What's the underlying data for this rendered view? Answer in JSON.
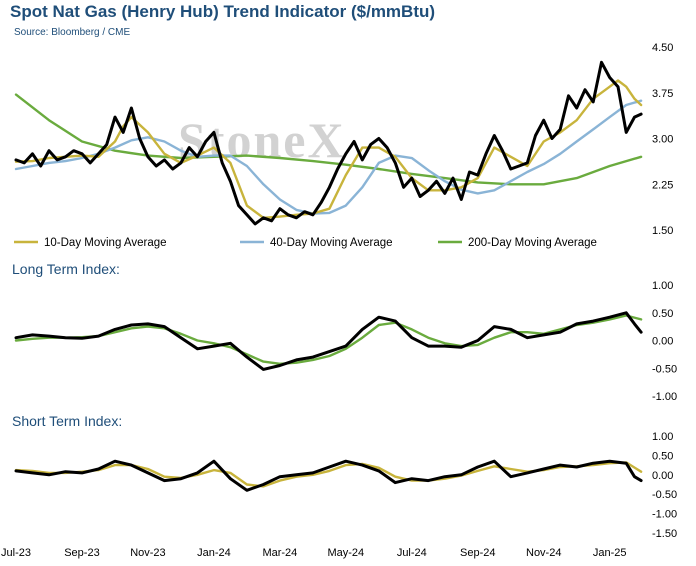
{
  "header": {
    "title": "Spot Nat Gas (Henry Hub) Trend Indicator ($/mmBtu)",
    "source": "Source: Bloomberg / CME"
  },
  "watermark": "StoneX",
  "colors": {
    "price": "#000000",
    "ma10": "#c8b43c",
    "ma40": "#8ab4d6",
    "ma200": "#6aab3e",
    "title": "#1f4e79"
  },
  "chart_data": [
    {
      "type": "line",
      "panel": "price",
      "title": "Spot Nat Gas (Henry Hub) Trend Indicator ($/mmBtu)",
      "ylim": [
        1.5,
        4.5
      ],
      "yticks": [
        "1.50",
        "2.25",
        "3.00",
        "3.75",
        "4.50"
      ],
      "ytick_values": [
        1.5,
        2.25,
        3.0,
        3.75,
        4.5
      ],
      "xticks": [
        "Jul-23",
        "Sep-23",
        "Nov-23",
        "Jan-24",
        "Mar-24",
        "May-24",
        "Jul-24",
        "Sep-24",
        "Nov-24",
        "Jan-25"
      ],
      "x_months": [
        0,
        2,
        4,
        6,
        8,
        10,
        12,
        14,
        16,
        18
      ],
      "x_range": [
        0,
        19.1
      ],
      "grid": false,
      "legend_position": "bottom",
      "series": [
        {
          "name": "",
          "key": "price",
          "x": [
            0,
            0.25,
            0.5,
            0.75,
            1,
            1.25,
            1.5,
            1.75,
            2,
            2.25,
            2.5,
            2.75,
            3,
            3.25,
            3.5,
            3.75,
            4,
            4.25,
            4.5,
            4.75,
            5,
            5.25,
            5.5,
            5.75,
            6,
            6.25,
            6.5,
            6.75,
            7,
            7.25,
            7.5,
            7.75,
            8,
            8.25,
            8.5,
            8.75,
            9,
            9.25,
            9.5,
            9.75,
            10,
            10.25,
            10.5,
            10.75,
            11,
            11.25,
            11.5,
            11.75,
            12,
            12.25,
            12.5,
            12.75,
            13,
            13.25,
            13.5,
            13.75,
            14,
            14.25,
            14.5,
            14.75,
            15,
            15.25,
            15.5,
            15.75,
            16,
            16.25,
            16.5,
            16.75,
            17,
            17.25,
            17.5,
            17.75,
            18,
            18.25,
            18.5,
            18.75,
            18.95
          ],
          "y": [
            2.65,
            2.6,
            2.75,
            2.55,
            2.8,
            2.65,
            2.7,
            2.8,
            2.75,
            2.6,
            2.75,
            2.9,
            3.35,
            3.1,
            3.5,
            3.0,
            2.7,
            2.55,
            2.65,
            2.5,
            2.6,
            2.85,
            2.7,
            2.95,
            3.1,
            2.6,
            2.3,
            1.9,
            1.75,
            1.6,
            1.7,
            1.65,
            1.85,
            1.75,
            1.7,
            1.8,
            1.75,
            1.95,
            2.2,
            2.5,
            2.75,
            2.95,
            2.65,
            2.9,
            3.0,
            2.85,
            2.6,
            2.2,
            2.35,
            2.05,
            2.15,
            2.3,
            2.1,
            2.35,
            2.0,
            2.45,
            2.4,
            2.75,
            3.05,
            2.8,
            2.5,
            2.55,
            2.6,
            3.05,
            3.3,
            3.0,
            3.15,
            3.7,
            3.5,
            3.8,
            3.6,
            4.25,
            4.0,
            3.85,
            3.1,
            3.35,
            3.4
          ]
        },
        {
          "name": "10-Day Moving Average",
          "key": "ma10",
          "x": [
            0,
            0.5,
            1,
            1.5,
            2,
            2.5,
            3,
            3.25,
            3.5,
            4,
            4.5,
            5,
            5.5,
            6,
            6.5,
            7,
            7.5,
            8,
            8.5,
            9,
            9.5,
            10,
            10.5,
            11,
            11.5,
            12,
            12.5,
            13,
            13.5,
            14,
            14.5,
            15,
            15.5,
            16,
            16.5,
            17,
            17.5,
            18,
            18.25,
            18.5,
            18.75,
            18.95
          ],
          "y": [
            2.62,
            2.63,
            2.68,
            2.7,
            2.72,
            2.7,
            2.95,
            3.2,
            3.35,
            3.1,
            2.75,
            2.6,
            2.72,
            2.85,
            2.6,
            1.9,
            1.7,
            1.72,
            1.75,
            1.77,
            1.85,
            2.4,
            2.85,
            2.85,
            2.7,
            2.35,
            2.15,
            2.15,
            2.2,
            2.35,
            2.85,
            2.7,
            2.55,
            2.95,
            3.1,
            3.3,
            3.65,
            3.85,
            3.95,
            3.85,
            3.65,
            3.55
          ]
        },
        {
          "name": "40-Day Moving Average",
          "key": "ma40",
          "x": [
            0,
            0.5,
            1,
            1.5,
            2,
            2.5,
            3,
            3.5,
            4,
            4.5,
            5,
            5.5,
            6,
            6.5,
            7,
            7.5,
            8,
            8.5,
            9,
            9.5,
            10,
            10.5,
            11,
            11.5,
            12,
            12.5,
            13,
            13.5,
            14,
            14.5,
            15,
            15.5,
            16,
            16.5,
            17,
            17.5,
            18,
            18.5,
            18.95
          ],
          "y": [
            2.5,
            2.55,
            2.6,
            2.63,
            2.68,
            2.75,
            2.85,
            2.97,
            3.02,
            2.95,
            2.8,
            2.7,
            2.72,
            2.72,
            2.55,
            2.25,
            2.0,
            1.83,
            1.77,
            1.78,
            1.9,
            2.2,
            2.6,
            2.72,
            2.68,
            2.48,
            2.3,
            2.16,
            2.1,
            2.15,
            2.3,
            2.45,
            2.58,
            2.75,
            2.95,
            3.15,
            3.35,
            3.55,
            3.62
          ]
        },
        {
          "name": "200-Day Moving Average",
          "key": "ma200",
          "x": [
            0,
            1,
            2,
            3,
            4,
            5,
            6,
            7,
            8,
            9,
            10,
            11,
            12,
            13,
            14,
            15,
            16,
            17,
            18,
            18.95
          ],
          "y": [
            3.72,
            3.3,
            2.95,
            2.8,
            2.72,
            2.68,
            2.7,
            2.72,
            2.68,
            2.63,
            2.57,
            2.5,
            2.42,
            2.35,
            2.28,
            2.25,
            2.25,
            2.35,
            2.55,
            2.7
          ]
        }
      ]
    },
    {
      "type": "line",
      "panel": "long_term",
      "title": "Long Term Index:",
      "ylim": [
        -1.0,
        1.0
      ],
      "yticks": [
        "1.00",
        "0.50",
        "0.00",
        "-0.50",
        "-1.00"
      ],
      "ytick_values": [
        1.0,
        0.5,
        0.0,
        -0.5,
        -1.0
      ],
      "x_range": [
        0,
        19.1
      ],
      "grid": false,
      "series": [
        {
          "name": "",
          "key": "lt_index",
          "color": "#000000",
          "x": [
            0,
            0.5,
            1,
            1.5,
            2,
            2.5,
            3,
            3.5,
            4,
            4.5,
            5,
            5.5,
            6,
            6.5,
            7,
            7.5,
            8,
            8.5,
            9,
            9.5,
            10,
            10.5,
            11,
            11.5,
            12,
            12.5,
            13,
            13.5,
            14,
            14.5,
            15,
            15.5,
            16,
            16.5,
            17,
            17.5,
            18,
            18.5,
            18.75,
            18.95
          ],
          "y": [
            0.05,
            0.1,
            0.08,
            0.05,
            0.04,
            0.08,
            0.2,
            0.28,
            0.3,
            0.25,
            0.05,
            -0.15,
            -0.1,
            -0.05,
            -0.3,
            -0.52,
            -0.45,
            -0.35,
            -0.3,
            -0.2,
            -0.1,
            0.2,
            0.42,
            0.35,
            0.05,
            -0.1,
            -0.1,
            -0.12,
            0.0,
            0.25,
            0.2,
            0.05,
            0.1,
            0.15,
            0.3,
            0.35,
            0.42,
            0.5,
            0.3,
            0.15
          ]
        },
        {
          "name": "",
          "key": "lt_smooth",
          "color": "#6aab3e",
          "x": [
            0,
            0.5,
            1,
            1.5,
            2,
            2.5,
            3,
            3.5,
            4,
            4.5,
            5,
            5.5,
            6,
            6.5,
            7,
            7.5,
            8,
            8.5,
            9,
            9.5,
            10,
            10.5,
            11,
            11.5,
            12,
            12.5,
            13,
            13.5,
            14,
            14.5,
            15,
            15.5,
            16,
            16.5,
            17,
            17.5,
            18,
            18.5,
            18.95
          ],
          "y": [
            0.0,
            0.03,
            0.05,
            0.05,
            0.06,
            0.08,
            0.15,
            0.22,
            0.25,
            0.22,
            0.12,
            0.0,
            -0.05,
            -0.12,
            -0.25,
            -0.38,
            -0.42,
            -0.4,
            -0.35,
            -0.28,
            -0.15,
            0.05,
            0.28,
            0.32,
            0.2,
            0.05,
            -0.05,
            -0.1,
            -0.08,
            0.05,
            0.15,
            0.15,
            0.12,
            0.2,
            0.28,
            0.32,
            0.38,
            0.45,
            0.38
          ]
        }
      ]
    },
    {
      "type": "line",
      "panel": "short_term",
      "title": "Short Term Index:",
      "ylim": [
        -1.5,
        1.0
      ],
      "yticks": [
        "1.00",
        "0.50",
        "0.00",
        "-0.50",
        "-1.00",
        "-1.50"
      ],
      "ytick_values": [
        1.0,
        0.5,
        0.0,
        -0.5,
        -1.0,
        -1.5
      ],
      "x_range": [
        0,
        19.1
      ],
      "grid": false,
      "series": [
        {
          "name": "",
          "key": "st_index",
          "color": "#000000",
          "x": [
            0,
            0.5,
            1,
            1.5,
            2,
            2.5,
            3,
            3.5,
            4,
            4.5,
            5,
            5.5,
            6,
            6.5,
            7,
            7.5,
            8,
            8.5,
            9,
            9.5,
            10,
            10.5,
            11,
            11.5,
            12,
            12.5,
            13,
            13.5,
            14,
            14.5,
            15,
            15.5,
            16,
            16.5,
            17,
            17.5,
            18,
            18.5,
            18.75,
            18.95
          ],
          "y": [
            0.1,
            0.05,
            0.0,
            0.08,
            0.05,
            0.15,
            0.35,
            0.25,
            0.05,
            -0.15,
            -0.1,
            0.05,
            0.35,
            -0.1,
            -0.4,
            -0.25,
            -0.05,
            0.0,
            0.05,
            0.2,
            0.35,
            0.25,
            0.1,
            -0.2,
            -0.1,
            -0.15,
            -0.05,
            0.0,
            0.2,
            0.35,
            -0.05,
            0.05,
            0.15,
            0.25,
            0.2,
            0.3,
            0.35,
            0.3,
            -0.05,
            -0.15
          ]
        },
        {
          "name": "",
          "key": "st_smooth",
          "color": "#c8b43c",
          "x": [
            0,
            0.5,
            1,
            1.5,
            2,
            2.5,
            3,
            3.5,
            4,
            4.5,
            5,
            5.5,
            6,
            6.5,
            7,
            7.5,
            8,
            8.5,
            9,
            9.5,
            10,
            10.5,
            11,
            11.5,
            12,
            12.5,
            13,
            13.5,
            14,
            14.5,
            15,
            15.5,
            16,
            16.5,
            17,
            17.5,
            18,
            18.5,
            18.95
          ],
          "y": [
            0.12,
            0.1,
            0.05,
            0.05,
            0.08,
            0.12,
            0.25,
            0.25,
            0.15,
            -0.05,
            -0.08,
            0.0,
            0.12,
            0.05,
            -0.25,
            -0.3,
            -0.15,
            -0.05,
            0.0,
            0.1,
            0.25,
            0.28,
            0.18,
            -0.05,
            -0.15,
            -0.15,
            -0.1,
            -0.02,
            0.1,
            0.22,
            0.15,
            0.08,
            0.12,
            0.2,
            0.22,
            0.25,
            0.3,
            0.32,
            0.08
          ]
        }
      ]
    }
  ]
}
